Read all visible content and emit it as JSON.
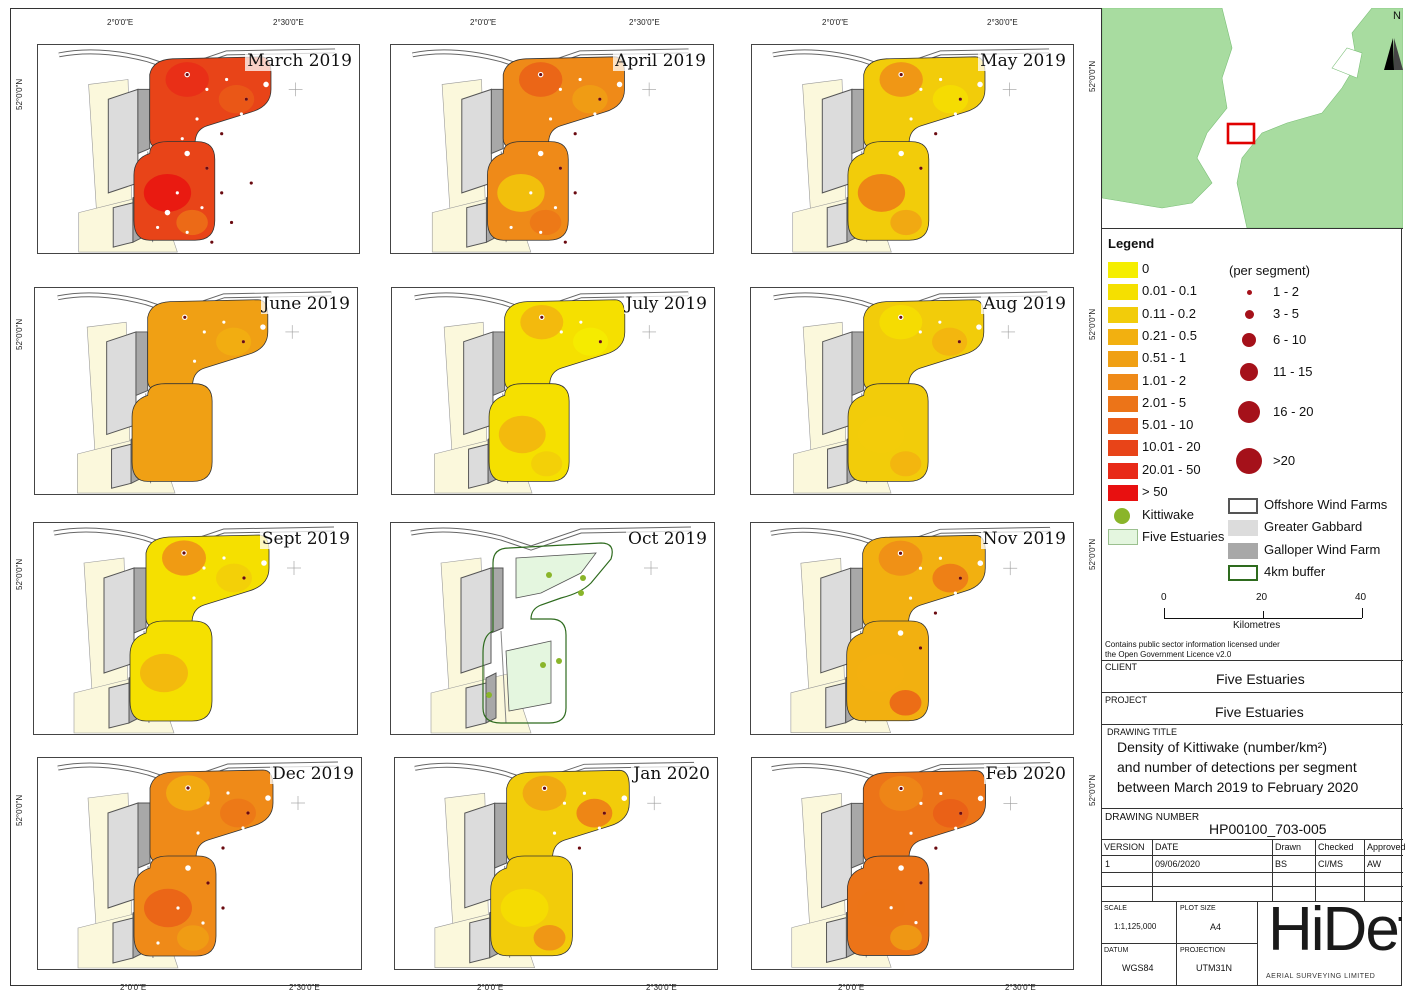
{
  "colors": {
    "c0": "#f5ee00",
    "c1": "#f5e000",
    "c2": "#f2cc0a",
    "c3": "#f2b010",
    "c4": "#f0a014",
    "c5": "#ef8a18",
    "c6": "#ec7418",
    "c7": "#ea5c18",
    "c8": "#e84418",
    "c9": "#e82a18",
    "c10": "#e81010",
    "kittiwake": "#8ab52a",
    "five_estuaries": "#e4f6df",
    "greater_gabbard": "#dcdcdc",
    "galloper": "#a8a8a8",
    "buffer": "#2e6b1e",
    "detection": "#a5111a",
    "land": "#a8dca0",
    "sea": "#ffffff"
  },
  "axis": {
    "lon_a": "2°0'0\"E",
    "lon_b": "2°30'0\"E",
    "lat": "52°0'0\"N"
  },
  "panels": [
    {
      "title": "March 2019",
      "fill": "c8",
      "patches": [
        "c9",
        "c7",
        "c10",
        "c6"
      ],
      "dots": 22
    },
    {
      "title": "April 2019",
      "fill": "c5",
      "patches": [
        "c7",
        "c4",
        "c2",
        "c6"
      ],
      "dots": 16
    },
    {
      "title": "May 2019",
      "fill": "c2",
      "patches": [
        "c5",
        "c1",
        "c6",
        "c4"
      ],
      "dots": 10
    },
    {
      "title": "June 2019",
      "fill": "c4",
      "patches": [
        "c4",
        "c3",
        "c4",
        "c4"
      ],
      "dots": 6
    },
    {
      "title": "July 2019",
      "fill": "c1",
      "patches": [
        "c3",
        "c0",
        "c3",
        "c2"
      ],
      "dots": 4
    },
    {
      "title": "Aug 2019",
      "fill": "c2",
      "patches": [
        "c1",
        "c3",
        "c2",
        "c3"
      ],
      "dots": 5
    },
    {
      "title": "Sept 2019",
      "fill": "c1",
      "patches": [
        "c5",
        "c2",
        "c3",
        "c1"
      ],
      "dots": 6
    },
    {
      "title": "Oct 2019",
      "fill": "none",
      "patches": [],
      "dots": 0
    },
    {
      "title": "Nov 2019",
      "fill": "c3",
      "patches": [
        "c5",
        "c6",
        "c3",
        "c7"
      ],
      "dots": 10
    },
    {
      "title": "Dec 2019",
      "fill": "c5",
      "patches": [
        "c3",
        "c6",
        "c7",
        "c4"
      ],
      "dots": 14
    },
    {
      "title": "Jan 2020",
      "fill": "c2",
      "patches": [
        "c4",
        "c6",
        "c1",
        "c5"
      ],
      "dots": 8
    },
    {
      "title": "Feb 2020",
      "fill": "c6",
      "patches": [
        "c5",
        "c7",
        "c6",
        "c4"
      ],
      "dots": 12
    }
  ],
  "legend": {
    "title": "Legend",
    "density_classes": [
      "0",
      "0.01 - 0.1",
      "0.11 - 0.2",
      "0.21 - 0.5",
      "0.51 - 1",
      "1.01 - 2",
      "2.01 - 5",
      "5.01 - 10",
      "10.01 - 20",
      "20.01 - 50",
      "> 50"
    ],
    "per_segment_label": "(per segment)",
    "detection_classes": [
      "1 - 2",
      "3 - 5",
      "6 - 10",
      "11 - 15",
      "16 - 20",
      ">20"
    ],
    "kittiwake": "Kittiwake",
    "five_estuaries": "Five Estuaries",
    "offshore_wind_farms": "Offshore Wind Farms",
    "greater_gabbard": "Greater Gabbard",
    "galloper": "Galloper Wind Farm",
    "buffer": "4km buffer",
    "scale_ticks": [
      "0",
      "20",
      "40"
    ],
    "scale_unit": "Kilometres",
    "licence_1": "Contains public sector information licensed under",
    "licence_2": "the Open Government Licence v2.0"
  },
  "inset": {
    "north": "N"
  },
  "title_block": {
    "client_label": "CLIENT",
    "client": "Five Estuaries",
    "project_label": "PROJECT",
    "project": "Five Estuaries",
    "drawing_title_label": "DRAWING TITLE",
    "drawing_title_1": "Density of Kittiwake (number/km²)",
    "drawing_title_2": "and number of detections per segment",
    "drawing_title_3": "between March 2019 to February 2020",
    "drawing_number_label": "DRAWING NUMBER",
    "drawing_number": "HP00100_703-005",
    "version_label": "VERSION",
    "date_label": "DATE",
    "drawn_label": "Drawn",
    "checked_label": "Checked",
    "approved_label": "Approved",
    "version": "1",
    "date": "09/06/2020",
    "drawn": "BS",
    "checked": "CI/MS",
    "approved": "AW",
    "scale_label": "SCALE",
    "scale": "1:1,125,000",
    "plot_size_label": "PLOT SIZE",
    "plot_size": "A4",
    "datum_label": "DATUM",
    "datum": "WGS84",
    "projection_label": "PROJECTION",
    "projection": "UTM31N",
    "logo_text": "HiDef",
    "logo_sub": "AERIAL SURVEYING LIMITED"
  }
}
